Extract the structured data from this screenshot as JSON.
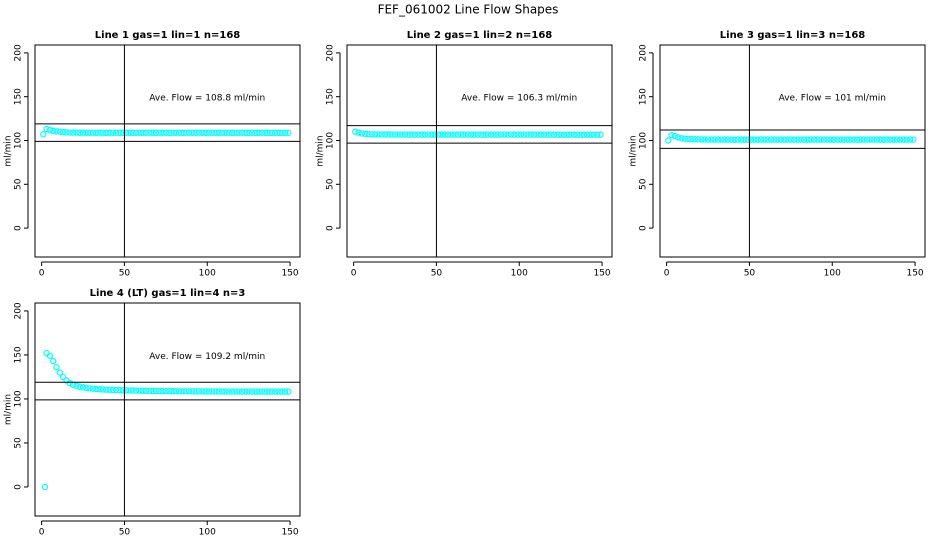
{
  "title": "FEF_061002  Line Flow Shapes",
  "chart_data": [
    {
      "type": "scatter",
      "title": "Line 1 gas=1 lin=1 n=168",
      "ylabel": "ml/min",
      "annotation": "Ave. Flow =  108.8  ml/min",
      "color": "#00ffff",
      "x": [
        1,
        3,
        5,
        7,
        9,
        11,
        13,
        15,
        17,
        19,
        21,
        23,
        25,
        27,
        29,
        31,
        33,
        35,
        37,
        39,
        41,
        43,
        45,
        47,
        49,
        51,
        53,
        55,
        57,
        59,
        61,
        63,
        65,
        67,
        69,
        71,
        73,
        75,
        77,
        79,
        81,
        83,
        85,
        87,
        89,
        91,
        93,
        95,
        97,
        99,
        101,
        103,
        105,
        107,
        109,
        111,
        113,
        115,
        117,
        119,
        121,
        123,
        125,
        127,
        129,
        131,
        133,
        135,
        137,
        139,
        141,
        143,
        145,
        147,
        149
      ],
      "values": [
        107,
        113,
        112,
        111,
        110.5,
        110,
        109.6,
        109.3,
        109.1,
        109,
        109,
        108.9,
        108.9,
        108.9,
        108.8,
        108.8,
        108.8,
        108.9,
        108.8,
        108.7,
        108.8,
        108.8,
        108.8,
        108.7,
        108.8,
        108.8,
        108.8,
        108.7,
        108.8,
        108.8,
        108.8,
        108.8,
        108.9,
        108.8,
        108.7,
        108.8,
        108.8,
        108.8,
        108.7,
        108.8,
        108.8,
        108.8,
        108.7,
        108.8,
        108.8,
        108.8,
        108.8,
        108.9,
        108.8,
        108.7,
        108.8,
        108.8,
        108.8,
        108.7,
        108.8,
        108.8,
        108.8,
        108.7,
        108.8,
        108.8,
        108.8,
        108.7,
        108.7,
        108.8,
        108.7,
        108.7,
        108.8,
        108.7,
        108.7,
        108.7,
        108.8,
        108.7,
        108.7,
        108.7,
        108.8
      ],
      "xlim": [
        -4,
        156
      ],
      "ylim": [
        -33,
        209
      ],
      "xticks": [
        0,
        50,
        100,
        150
      ],
      "yticks": [
        0,
        50,
        100,
        150,
        200
      ],
      "hlines": [
        99,
        119
      ],
      "vline": 50
    },
    {
      "type": "scatter",
      "title": "Line 2 gas=1 lin=2 n=168",
      "ylabel": "ml/min",
      "annotation": "Ave. Flow =  106.3  ml/min",
      "color": "#00ffff",
      "x": [
        1,
        3,
        5,
        7,
        9,
        11,
        13,
        15,
        17,
        19,
        21,
        23,
        25,
        27,
        29,
        31,
        33,
        35,
        37,
        39,
        41,
        43,
        45,
        47,
        49,
        51,
        53,
        55,
        57,
        59,
        61,
        63,
        65,
        67,
        69,
        71,
        73,
        75,
        77,
        79,
        81,
        83,
        85,
        87,
        89,
        91,
        93,
        95,
        97,
        99,
        101,
        103,
        105,
        107,
        109,
        111,
        113,
        115,
        117,
        119,
        121,
        123,
        125,
        127,
        129,
        131,
        133,
        135,
        137,
        139,
        141,
        143,
        145,
        147,
        149
      ],
      "values": [
        110,
        109,
        108,
        107.6,
        107.3,
        107.1,
        107,
        107,
        106.9,
        106.9,
        106.9,
        106.8,
        106.8,
        106.8,
        106.8,
        106.8,
        106.7,
        106.8,
        106.7,
        106.8,
        106.7,
        106.7,
        106.8,
        106.7,
        106.7,
        106.8,
        106.7,
        106.7,
        106.7,
        106.8,
        106.8,
        106.7,
        106.8,
        106.7,
        106.8,
        106.7,
        106.7,
        106.8,
        106.7,
        106.7,
        106.8,
        106.7,
        106.7,
        106.7,
        106.8,
        106.8,
        106.7,
        106.8,
        106.7,
        106.8,
        106.7,
        106.7,
        106.8,
        106.7,
        106.7,
        106.8,
        106.7,
        106.7,
        106.7,
        106.8,
        106.7,
        106.6,
        106.7,
        106.6,
        106.7,
        106.6,
        106.6,
        106.7,
        106.6,
        106.6,
        106.6,
        106.7,
        106.6,
        106.6,
        106.7
      ],
      "xlim": [
        -4,
        156
      ],
      "ylim": [
        -33,
        209
      ],
      "xticks": [
        0,
        50,
        100,
        150
      ],
      "yticks": [
        0,
        50,
        100,
        150,
        200
      ],
      "hlines": [
        97,
        117
      ],
      "vline": 50
    },
    {
      "type": "scatter",
      "title": "Line 3 gas=1 lin=3 n=168",
      "ylabel": "ml/min",
      "annotation": "Ave. Flow =  101  ml/min",
      "color": "#00ffff",
      "x": [
        1,
        3,
        5,
        7,
        9,
        11,
        13,
        15,
        17,
        19,
        21,
        23,
        25,
        27,
        29,
        31,
        33,
        35,
        37,
        39,
        41,
        43,
        45,
        47,
        49,
        51,
        53,
        55,
        57,
        59,
        61,
        63,
        65,
        67,
        69,
        71,
        73,
        75,
        77,
        79,
        81,
        83,
        85,
        87,
        89,
        91,
        93,
        95,
        97,
        99,
        101,
        103,
        105,
        107,
        109,
        111,
        113,
        115,
        117,
        119,
        121,
        123,
        125,
        127,
        129,
        131,
        133,
        135,
        137,
        139,
        141,
        143,
        145,
        147,
        149
      ],
      "values": [
        100,
        106,
        105,
        103.5,
        102.5,
        102,
        101.8,
        101.5,
        101.4,
        101.3,
        101.2,
        101.2,
        101.1,
        101.1,
        101.1,
        101,
        101.1,
        101,
        101,
        101,
        100.9,
        101,
        101,
        100.9,
        101,
        101,
        101,
        100.9,
        101,
        101,
        101,
        101.1,
        101,
        101,
        101,
        100.9,
        101,
        101,
        100.9,
        101,
        101,
        101,
        100.9,
        101,
        101,
        101,
        101.1,
        101,
        101,
        101,
        100.9,
        101,
        101,
        100.9,
        101,
        101,
        101,
        100.9,
        101,
        101,
        101,
        101.1,
        101,
        101,
        101,
        100.9,
        101,
        101,
        100.9,
        101,
        101,
        101,
        100.9,
        101,
        101
      ],
      "xlim": [
        -4,
        156
      ],
      "ylim": [
        -33,
        209
      ],
      "xticks": [
        0,
        50,
        100,
        150
      ],
      "yticks": [
        0,
        50,
        100,
        150,
        200
      ],
      "hlines": [
        91,
        112
      ],
      "vline": 50
    },
    {
      "type": "scatter",
      "title": "Line 4 (LT) gas=1 lin=4 n=3",
      "ylabel": "ml/min",
      "annotation": "Ave. Flow =  109.2  ml/min",
      "color": "#00ffff",
      "x": [
        2,
        3,
        5,
        7,
        9,
        11,
        13,
        15,
        17,
        19,
        21,
        23,
        25,
        27,
        29,
        31,
        33,
        35,
        37,
        39,
        41,
        43,
        45,
        47,
        49,
        51,
        53,
        55,
        57,
        59,
        61,
        63,
        65,
        67,
        69,
        71,
        73,
        75,
        77,
        79,
        81,
        83,
        85,
        87,
        89,
        91,
        93,
        95,
        97,
        99,
        101,
        103,
        105,
        107,
        109,
        111,
        113,
        115,
        117,
        119,
        121,
        123,
        125,
        127,
        129,
        131,
        133,
        135,
        137,
        139,
        141,
        143,
        145,
        147,
        149
      ],
      "values": [
        0,
        152,
        149,
        143,
        136,
        130,
        125,
        121,
        118,
        116,
        115,
        114,
        113.2,
        112.6,
        112.1,
        111.7,
        111.3,
        111,
        110.8,
        110.6,
        110.4,
        110.2,
        110.1,
        110,
        109.9,
        109.8,
        109.7,
        109.6,
        109.5,
        109.4,
        109.3,
        109.3,
        109.2,
        109.1,
        109.1,
        109,
        109,
        108.9,
        108.9,
        108.8,
        108.8,
        108.8,
        108.7,
        108.7,
        108.7,
        108.6,
        108.6,
        108.6,
        108.6,
        108.5,
        108.5,
        108.5,
        108.5,
        108.5,
        108.4,
        108.4,
        108.4,
        108.4,
        108.4,
        108.4,
        108.3,
        108.3,
        108.4,
        108.3,
        108.3,
        108.3,
        108.4,
        108.3,
        108.3,
        108.3,
        108.3,
        108.4,
        108.3,
        108.3,
        108.3
      ],
      "xlim": [
        -4,
        156
      ],
      "ylim": [
        -33,
        209
      ],
      "xticks": [
        0,
        50,
        100,
        150
      ],
      "yticks": [
        0,
        50,
        100,
        150,
        200
      ],
      "hlines": [
        99,
        119
      ],
      "vline": 50
    }
  ]
}
